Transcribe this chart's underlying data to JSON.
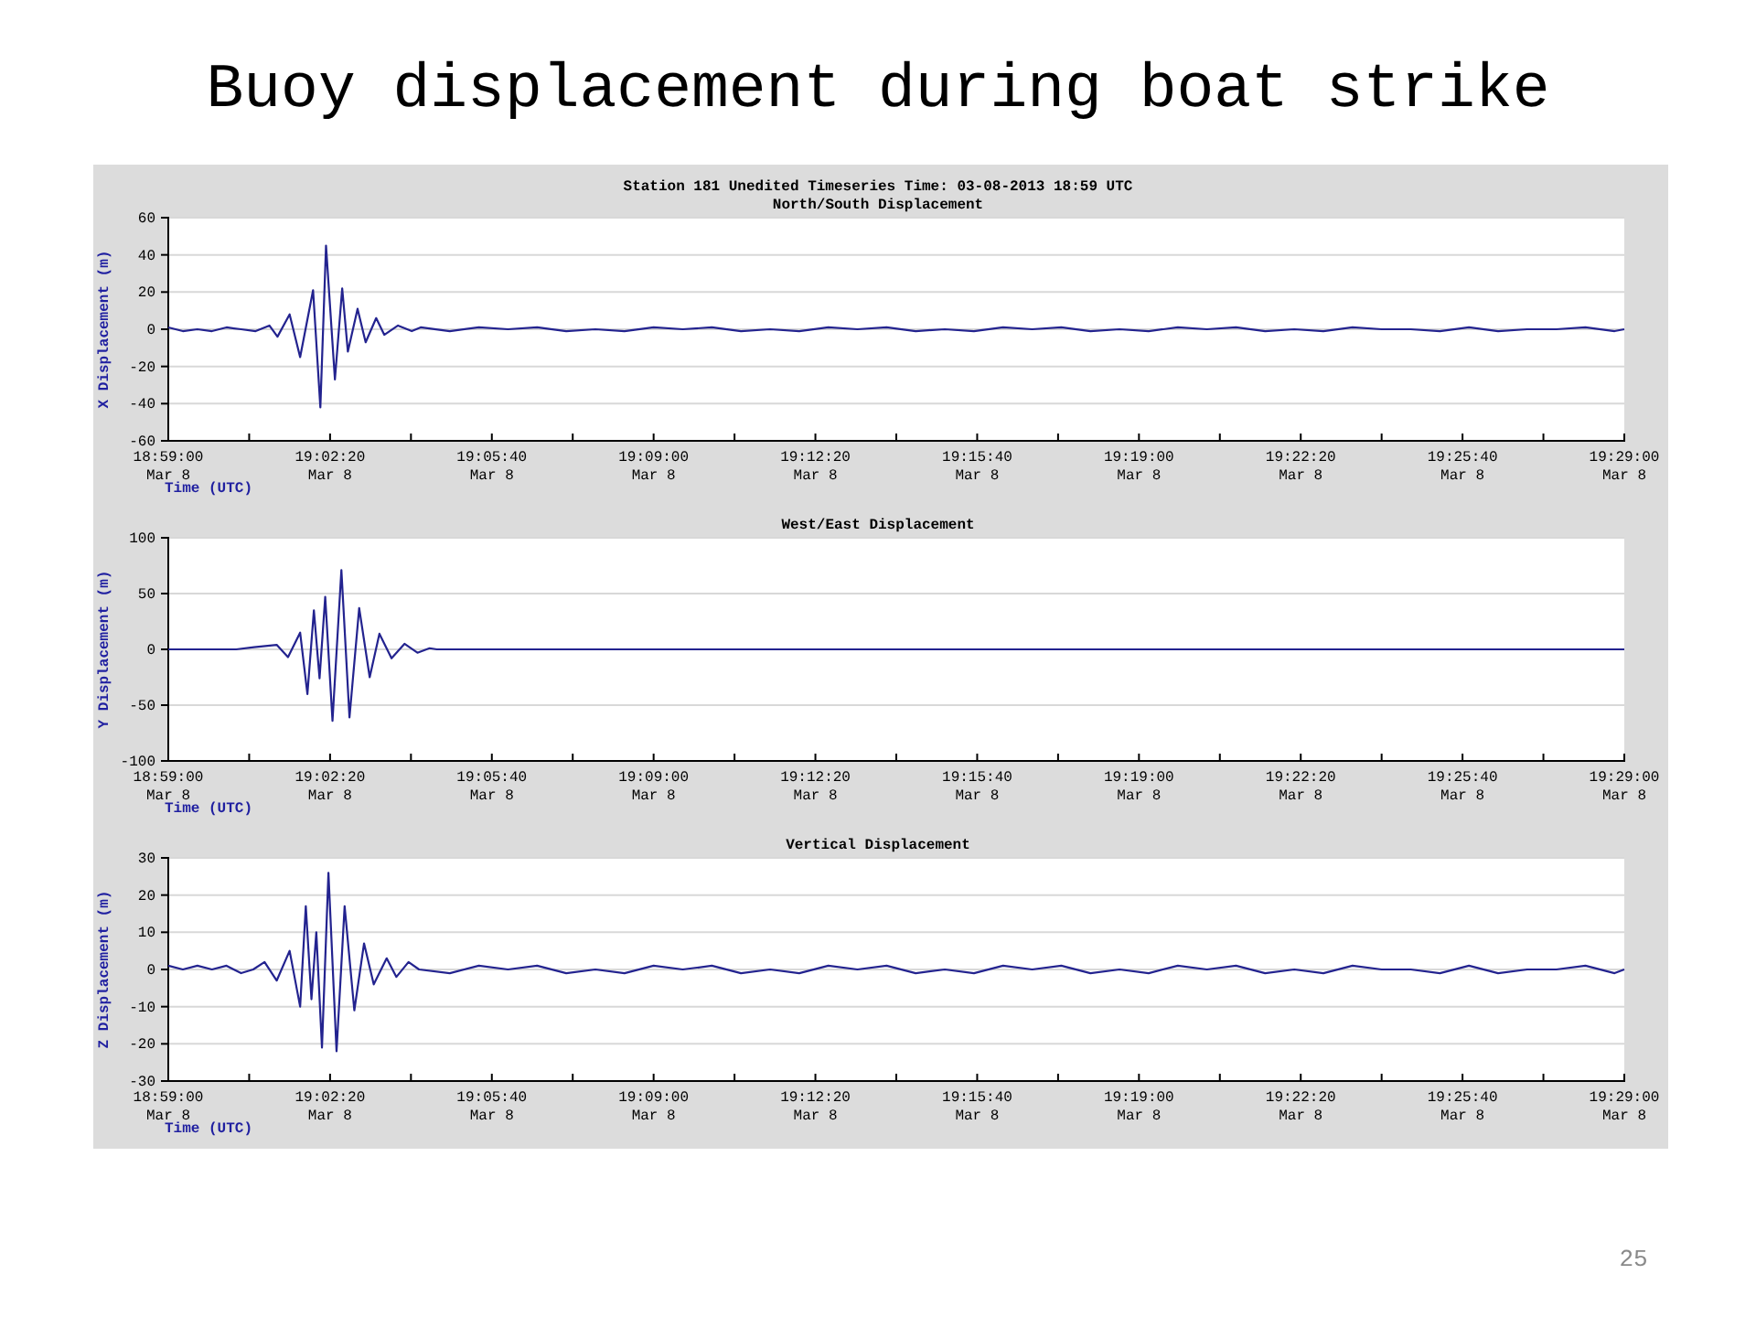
{
  "chart_data": [
    {
      "type": "line",
      "title": "North/South Displacement",
      "xlabel": "Time (UTC)",
      "ylabel": "X Displacement (m)",
      "annotations": [
        "Buoy displacement during boat strike",
        "Station 181  Unedited Timeseries  Time: 03-08-2013 18:59 UTC",
        "25"
      ],
      "xlim": [
        "2013-03-08T18:59:00",
        "2013-03-08T19:29:00"
      ],
      "ylim": [
        -60,
        60
      ],
      "yticks": [
        -60,
        -40,
        -20,
        0,
        20,
        40,
        60
      ],
      "xticks": [
        {
          "value": "2013-03-08T18:59:00",
          "label": "18:59:00\nMar 8"
        },
        {
          "value": "2013-03-08T19:00:40",
          "label": null
        },
        {
          "value": "2013-03-08T19:02:20",
          "label": "19:02:20\nMar 8"
        },
        {
          "value": "2013-03-08T19:04:00",
          "label": null
        },
        {
          "value": "2013-03-08T19:05:40",
          "label": "19:05:40\nMar 8"
        },
        {
          "value": "2013-03-08T19:07:20",
          "label": null
        },
        {
          "value": "2013-03-08T19:09:00",
          "label": "19:09:00\nMar 8"
        },
        {
          "value": "2013-03-08T19:10:40",
          "label": null
        },
        {
          "value": "2013-03-08T19:12:20",
          "label": "19:12:20\nMar 8"
        },
        {
          "value": "2013-03-08T19:14:00",
          "label": null
        },
        {
          "value": "2013-03-08T19:15:40",
          "label": "19:15:40\nMar 8"
        },
        {
          "value": "2013-03-08T19:17:20",
          "label": null
        },
        {
          "value": "2013-03-08T19:19:00",
          "label": "19:19:00\nMar 8"
        },
        {
          "value": "2013-03-08T19:20:40",
          "label": null
        },
        {
          "value": "2013-03-08T19:22:20",
          "label": "19:22:20\nMar 8"
        },
        {
          "value": "2013-03-08T19:24:00",
          "label": null
        },
        {
          "value": "2013-03-08T19:25:40",
          "label": "19:25:40\nMar 8"
        },
        {
          "value": "2013-03-08T19:27:20",
          "label": null
        },
        {
          "value": "2013-03-08T19:29:00",
          "label": "19:29:00\nMar 8"
        }
      ],
      "grid": "y",
      "marker": "none",
      "line_style": "solid",
      "series": [
        {
          "color": "#23238f",
          "x": [
            "2013-03-08T18:59:00",
            "2013-03-08T18:59:18",
            "2013-03-08T18:59:36",
            "2013-03-08T18:59:54",
            "2013-03-08T19:00:12",
            "2013-03-08T19:00:30",
            "2013-03-08T19:00:48",
            "2013-03-08T19:01:05",
            "2013-03-08T19:01:15",
            "2013-03-08T19:01:30",
            "2013-03-08T19:01:43",
            "2013-03-08T19:01:59",
            "2013-03-08T19:02:08",
            "2013-03-08T19:02:15",
            "2013-03-08T19:02:26",
            "2013-03-08T19:02:35",
            "2013-03-08T19:02:42",
            "2013-03-08T19:02:54",
            "2013-03-08T19:03:04",
            "2013-03-08T19:03:17",
            "2013-03-08T19:03:27",
            "2013-03-08T19:03:44",
            "2013-03-08T19:04:01",
            "2013-03-08T19:04:12",
            "2013-03-08T19:04:48",
            "2013-03-08T19:05:24",
            "2013-03-08T19:06:00",
            "2013-03-08T19:06:36",
            "2013-03-08T19:07:12",
            "2013-03-08T19:07:48",
            "2013-03-08T19:08:24",
            "2013-03-08T19:09:00",
            "2013-03-08T19:09:36",
            "2013-03-08T19:10:12",
            "2013-03-08T19:10:48",
            "2013-03-08T19:11:24",
            "2013-03-08T19:12:00",
            "2013-03-08T19:12:36",
            "2013-03-08T19:13:12",
            "2013-03-08T19:13:48",
            "2013-03-08T19:14:24",
            "2013-03-08T19:15:00",
            "2013-03-08T19:15:36",
            "2013-03-08T19:16:12",
            "2013-03-08T19:16:48",
            "2013-03-08T19:17:24",
            "2013-03-08T19:18:00",
            "2013-03-08T19:18:36",
            "2013-03-08T19:19:12",
            "2013-03-08T19:19:48",
            "2013-03-08T19:20:24",
            "2013-03-08T19:21:00",
            "2013-03-08T19:21:36",
            "2013-03-08T19:22:12",
            "2013-03-08T19:22:48",
            "2013-03-08T19:23:24",
            "2013-03-08T19:24:00",
            "2013-03-08T19:24:36",
            "2013-03-08T19:25:12",
            "2013-03-08T19:25:48",
            "2013-03-08T19:26:24",
            "2013-03-08T19:27:00",
            "2013-03-08T19:27:36",
            "2013-03-08T19:28:12",
            "2013-03-08T19:28:48",
            "2013-03-08T19:29:00"
          ],
          "values": [
            1,
            -1,
            0,
            -1,
            1,
            0,
            -1,
            2,
            -4,
            8,
            -15,
            21,
            -42,
            45,
            -27,
            22,
            -12,
            11,
            -7,
            6,
            -3,
            2,
            -1,
            1,
            -1,
            1,
            0,
            1,
            -1,
            0,
            -1,
            1,
            0,
            1,
            -1,
            0,
            -1,
            1,
            0,
            1,
            -1,
            0,
            -1,
            1,
            0,
            1,
            -1,
            0,
            -1,
            1,
            0,
            1,
            -1,
            0,
            -1,
            1,
            0,
            0,
            -1,
            1,
            -1,
            0,
            0,
            1,
            -1,
            0
          ]
        }
      ]
    },
    {
      "type": "line",
      "title": "West/East Displacement",
      "xlabel": "Time (UTC)",
      "ylabel": "Y Displacement (m)",
      "xlim": [
        "2013-03-08T18:59:00",
        "2013-03-08T19:29:00"
      ],
      "ylim": [
        -100,
        100
      ],
      "yticks": [
        -100,
        -50,
        0,
        50,
        100
      ],
      "xticks": [
        {
          "value": "2013-03-08T18:59:00",
          "label": "18:59:00\nMar 8"
        },
        {
          "value": "2013-03-08T19:00:40",
          "label": null
        },
        {
          "value": "2013-03-08T19:02:20",
          "label": "19:02:20\nMar 8"
        },
        {
          "value": "2013-03-08T19:04:00",
          "label": null
        },
        {
          "value": "2013-03-08T19:05:40",
          "label": "19:05:40\nMar 8"
        },
        {
          "value": "2013-03-08T19:07:20",
          "label": null
        },
        {
          "value": "2013-03-08T19:09:00",
          "label": "19:09:00\nMar 8"
        },
        {
          "value": "2013-03-08T19:10:40",
          "label": null
        },
        {
          "value": "2013-03-08T19:12:20",
          "label": "19:12:20\nMar 8"
        },
        {
          "value": "2013-03-08T19:14:00",
          "label": null
        },
        {
          "value": "2013-03-08T19:15:40",
          "label": "19:15:40\nMar 8"
        },
        {
          "value": "2013-03-08T19:17:20",
          "label": null
        },
        {
          "value": "2013-03-08T19:19:00",
          "label": "19:19:00\nMar 8"
        },
        {
          "value": "2013-03-08T19:20:40",
          "label": null
        },
        {
          "value": "2013-03-08T19:22:20",
          "label": "19:22:20\nMar 8"
        },
        {
          "value": "2013-03-08T19:24:00",
          "label": null
        },
        {
          "value": "2013-03-08T19:25:40",
          "label": "19:25:40\nMar 8"
        },
        {
          "value": "2013-03-08T19:27:20",
          "label": null
        },
        {
          "value": "2013-03-08T19:29:00",
          "label": "19:29:00\nMar 8"
        }
      ],
      "grid": "y",
      "marker": "none",
      "line_style": "solid",
      "series": [
        {
          "color": "#23238f",
          "x": [
            "2013-03-08T18:59:00",
            "2013-03-08T19:00:24",
            "2013-03-08T19:00:46",
            "2013-03-08T19:01:14",
            "2013-03-08T19:01:28",
            "2013-03-08T19:01:43",
            "2013-03-08T19:01:52",
            "2013-03-08T19:02:00",
            "2013-03-08T19:02:07",
            "2013-03-08T19:02:14",
            "2013-03-08T19:02:23",
            "2013-03-08T19:02:34",
            "2013-03-08T19:02:44",
            "2013-03-08T19:02:56",
            "2013-03-08T19:03:09",
            "2013-03-08T19:03:21",
            "2013-03-08T19:03:36",
            "2013-03-08T19:03:52",
            "2013-03-08T19:04:08",
            "2013-03-08T19:04:23",
            "2013-03-08T19:04:32",
            "2013-03-08T19:29:00"
          ],
          "values": [
            0,
            0,
            2,
            4,
            -7,
            15,
            -40,
            35,
            -26,
            47,
            -64,
            71,
            -61,
            37,
            -25,
            14,
            -8,
            5,
            -3,
            1,
            0,
            0
          ]
        }
      ]
    },
    {
      "type": "line",
      "title": "Vertical Displacement",
      "xlabel": "Time (UTC)",
      "ylabel": "Z Displacement (m)",
      "xlim": [
        "2013-03-08T18:59:00",
        "2013-03-08T19:29:00"
      ],
      "ylim": [
        -30,
        30
      ],
      "yticks": [
        -30,
        -20,
        -10,
        0,
        10,
        20,
        30
      ],
      "xticks": [
        {
          "value": "2013-03-08T18:59:00",
          "label": "18:59:00\nMar 8"
        },
        {
          "value": "2013-03-08T19:00:40",
          "label": null
        },
        {
          "value": "2013-03-08T19:02:20",
          "label": "19:02:20\nMar 8"
        },
        {
          "value": "2013-03-08T19:04:00",
          "label": null
        },
        {
          "value": "2013-03-08T19:05:40",
          "label": "19:05:40\nMar 8"
        },
        {
          "value": "2013-03-08T19:07:20",
          "label": null
        },
        {
          "value": "2013-03-08T19:09:00",
          "label": "19:09:00\nMar 8"
        },
        {
          "value": "2013-03-08T19:10:40",
          "label": null
        },
        {
          "value": "2013-03-08T19:12:20",
          "label": "19:12:20\nMar 8"
        },
        {
          "value": "2013-03-08T19:14:00",
          "label": null
        },
        {
          "value": "2013-03-08T19:15:40",
          "label": "19:15:40\nMar 8"
        },
        {
          "value": "2013-03-08T19:17:20",
          "label": null
        },
        {
          "value": "2013-03-08T19:19:00",
          "label": "19:19:00\nMar 8"
        },
        {
          "value": "2013-03-08T19:20:40",
          "label": null
        },
        {
          "value": "2013-03-08T19:22:20",
          "label": "19:22:20\nMar 8"
        },
        {
          "value": "2013-03-08T19:24:00",
          "label": null
        },
        {
          "value": "2013-03-08T19:25:40",
          "label": "19:25:40\nMar 8"
        },
        {
          "value": "2013-03-08T19:27:20",
          "label": null
        },
        {
          "value": "2013-03-08T19:29:00",
          "label": "19:29:00\nMar 8"
        }
      ],
      "grid": "y",
      "marker": "none",
      "line_style": "solid",
      "series": [
        {
          "color": "#23238f",
          "x": [
            "2013-03-08T18:59:00",
            "2013-03-08T18:59:18",
            "2013-03-08T18:59:36",
            "2013-03-08T18:59:54",
            "2013-03-08T19:00:12",
            "2013-03-08T19:00:30",
            "2013-03-08T19:00:45",
            "2013-03-08T19:00:59",
            "2013-03-08T19:01:14",
            "2013-03-08T19:01:30",
            "2013-03-08T19:01:43",
            "2013-03-08T19:01:50",
            "2013-03-08T19:01:57",
            "2013-03-08T19:02:03",
            "2013-03-08T19:02:10",
            "2013-03-08T19:02:18",
            "2013-03-08T19:02:28",
            "2013-03-08T19:02:38",
            "2013-03-08T19:02:50",
            "2013-03-08T19:03:02",
            "2013-03-08T19:03:14",
            "2013-03-08T19:03:30",
            "2013-03-08T19:03:42",
            "2013-03-08T19:03:57",
            "2013-03-08T19:04:10",
            "2013-03-08T19:04:48",
            "2013-03-08T19:05:24",
            "2013-03-08T19:06:00",
            "2013-03-08T19:06:36",
            "2013-03-08T19:07:12",
            "2013-03-08T19:07:48",
            "2013-03-08T19:08:24",
            "2013-03-08T19:09:00",
            "2013-03-08T19:09:36",
            "2013-03-08T19:10:12",
            "2013-03-08T19:10:48",
            "2013-03-08T19:11:24",
            "2013-03-08T19:12:00",
            "2013-03-08T19:12:36",
            "2013-03-08T19:13:12",
            "2013-03-08T19:13:48",
            "2013-03-08T19:14:24",
            "2013-03-08T19:15:00",
            "2013-03-08T19:15:36",
            "2013-03-08T19:16:12",
            "2013-03-08T19:16:48",
            "2013-03-08T19:17:24",
            "2013-03-08T19:18:00",
            "2013-03-08T19:18:36",
            "2013-03-08T19:19:12",
            "2013-03-08T19:19:48",
            "2013-03-08T19:20:24",
            "2013-03-08T19:21:00",
            "2013-03-08T19:21:36",
            "2013-03-08T19:22:12",
            "2013-03-08T19:22:48",
            "2013-03-08T19:23:24",
            "2013-03-08T19:24:00",
            "2013-03-08T19:24:36",
            "2013-03-08T19:25:12",
            "2013-03-08T19:25:48",
            "2013-03-08T19:26:24",
            "2013-03-08T19:27:00",
            "2013-03-08T19:27:36",
            "2013-03-08T19:28:12",
            "2013-03-08T19:28:48",
            "2013-03-08T19:29:00"
          ],
          "values": [
            1,
            0,
            1,
            0,
            1,
            -1,
            0,
            2,
            -3,
            5,
            -10,
            17,
            -8,
            10,
            -21,
            26,
            -22,
            17,
            -11,
            7,
            -4,
            3,
            -2,
            2,
            0,
            -1,
            1,
            0,
            1,
            -1,
            0,
            -1,
            1,
            0,
            1,
            -1,
            0,
            -1,
            1,
            0,
            1,
            -1,
            0,
            -1,
            1,
            0,
            1,
            -1,
            0,
            -1,
            1,
            0,
            1,
            -1,
            0,
            -1,
            1,
            0,
            0,
            -1,
            1,
            -1,
            0,
            0,
            1,
            -1,
            0
          ]
        }
      ]
    }
  ]
}
